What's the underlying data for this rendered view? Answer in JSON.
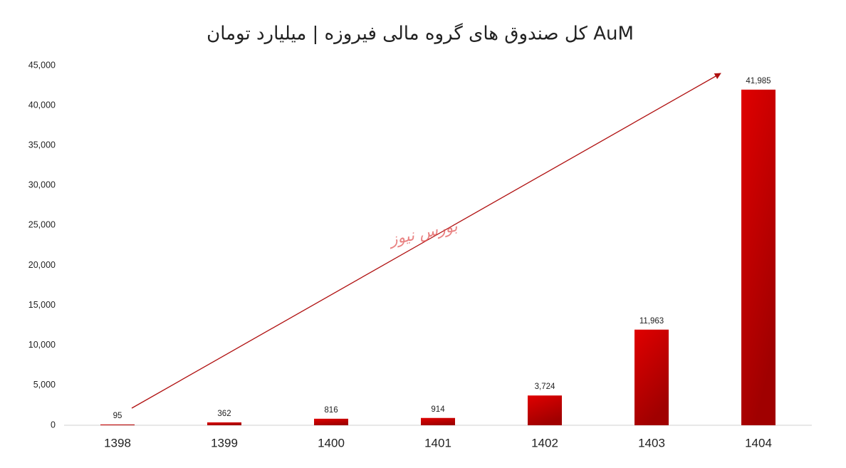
{
  "chart_data": {
    "type": "bar",
    "title": "AuM کل صندوق های گروه مالی فیروزه | میلیارد تومان",
    "watermark": "بورس نیوز",
    "categories": [
      "1398",
      "1399",
      "1400",
      "1401",
      "1402",
      "1403",
      "1404"
    ],
    "values": [
      95,
      362,
      816,
      914,
      3724,
      11963,
      41985
    ],
    "value_labels": [
      "95",
      "362",
      "816",
      "914",
      "3,724",
      "11,963",
      "41,985"
    ],
    "color": "#e00000",
    "ylim": [
      0,
      45000
    ],
    "yticks": [
      0,
      {
        "value": 5000,
        "label": "5,000"
      },
      {
        "value": 10000,
        "label": "10,000"
      },
      {
        "value": 15000,
        "label": "15,000"
      },
      {
        "value": 20000,
        "label": "20,000"
      },
      {
        "value": 25000,
        "label": "25,000"
      },
      {
        "value": 30000,
        "label": "30,000"
      },
      {
        "value": 35000,
        "label": "35,000"
      },
      {
        "value": 40000,
        "label": "40,000"
      },
      {
        "value": 45000,
        "label": "45,000"
      }
    ],
    "grid": false
  }
}
